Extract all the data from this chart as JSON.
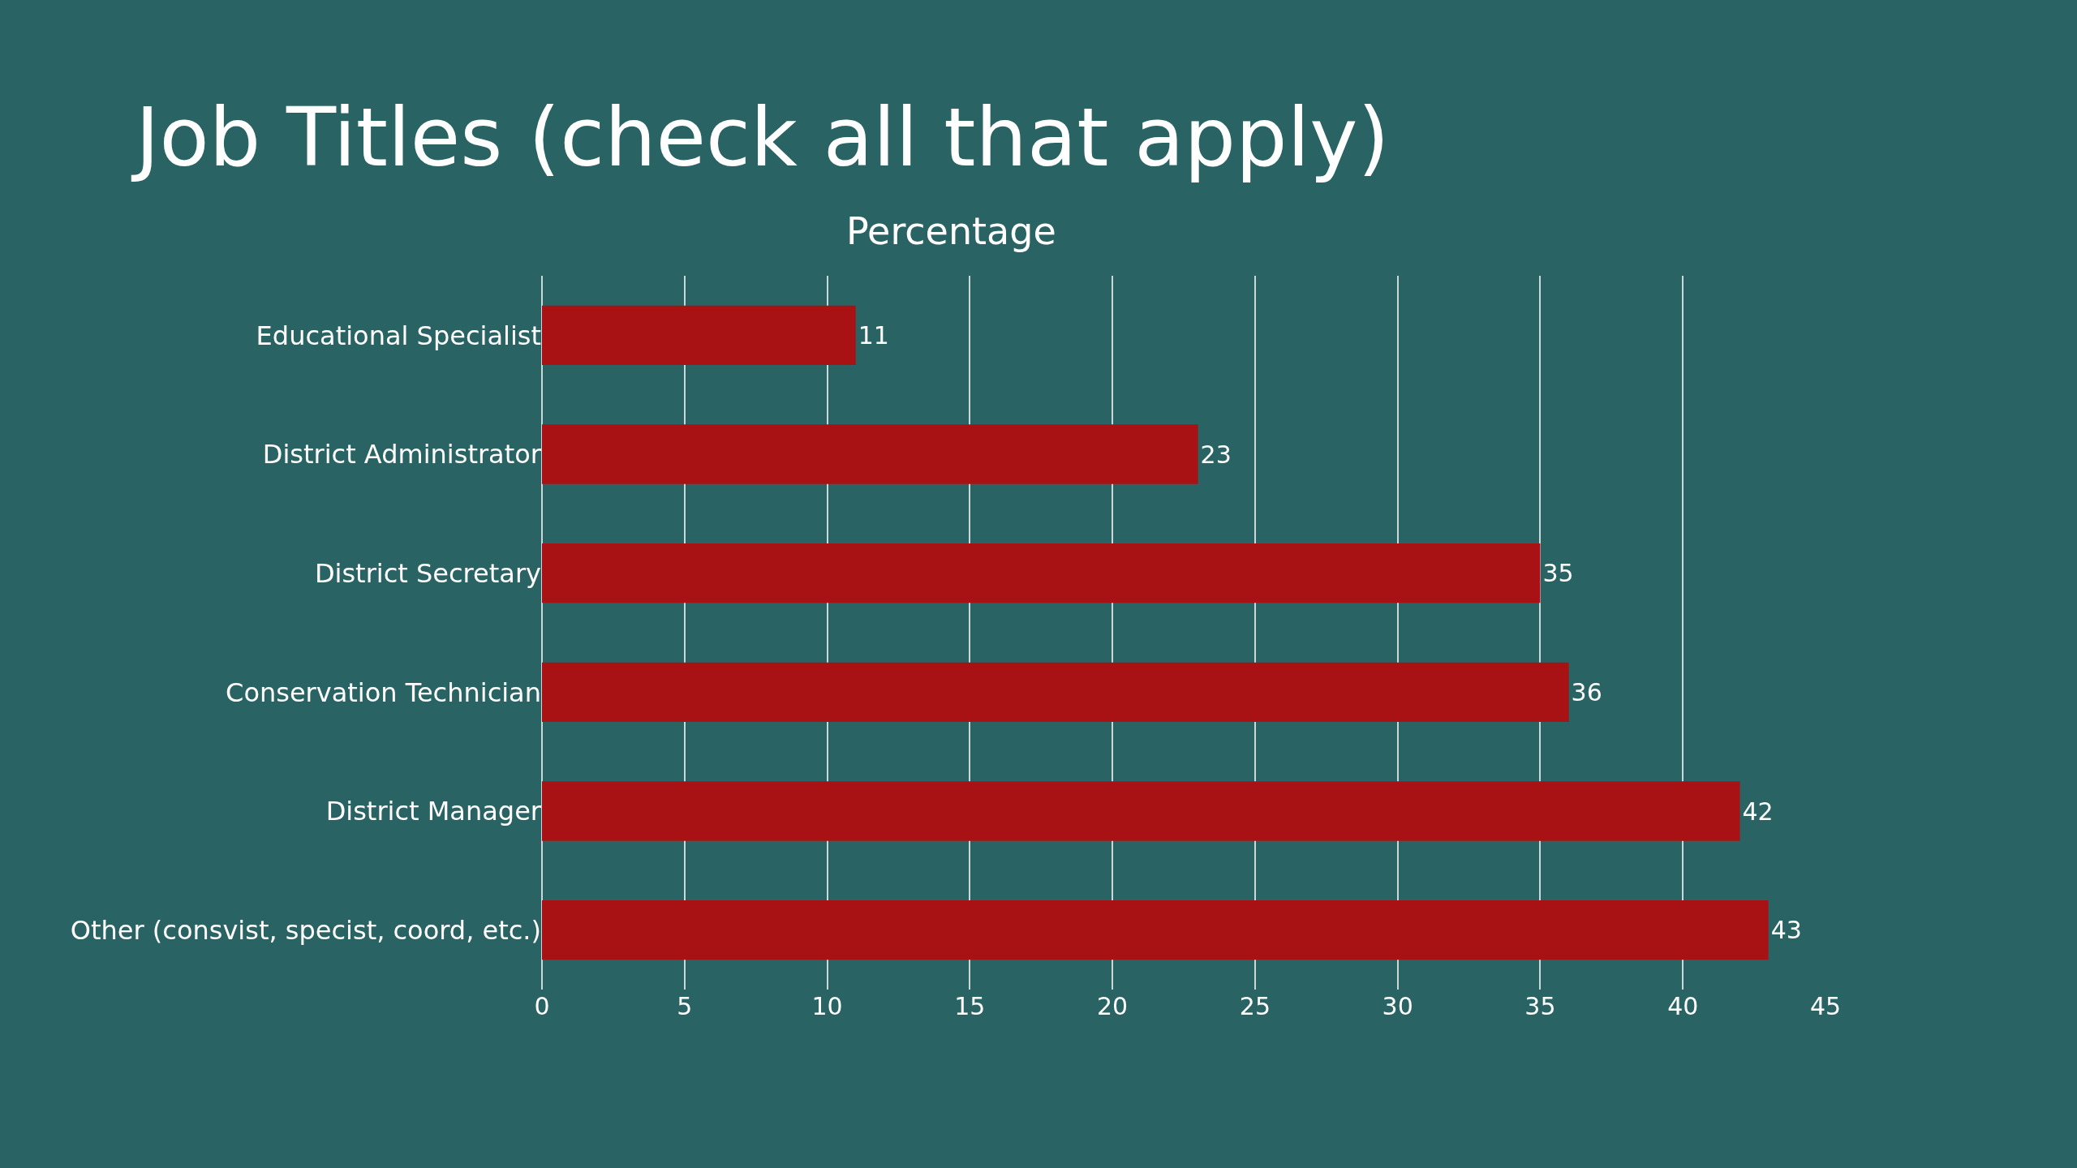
{
  "chart_data": {
    "type": "bar",
    "orientation": "horizontal",
    "title": "Job Titles (check all that apply)",
    "subtitle": "Percentage",
    "categories": [
      "Educational Specialist",
      "District Administrator",
      "District Secretary",
      "Conservation Technician",
      "District Manager",
      "Other (consvist, specist, coord, etc.)"
    ],
    "values": [
      11,
      23,
      35,
      36,
      42,
      43
    ],
    "color": "#a81214",
    "xlim": [
      0,
      45
    ],
    "xticks": [
      0,
      5,
      10,
      15,
      20,
      25,
      30,
      35,
      40,
      45
    ],
    "grid": "x",
    "data_labels": true
  }
}
